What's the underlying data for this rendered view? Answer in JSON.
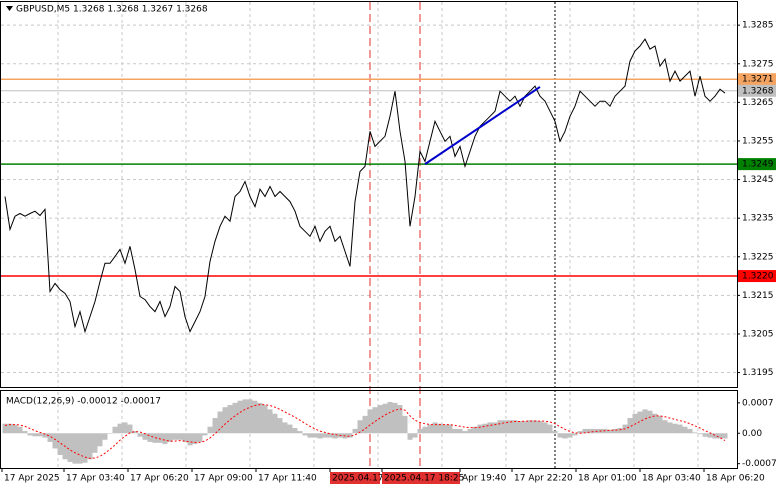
{
  "chart_data": {
    "type": "line",
    "title": "GBPUSD,M5  1.3268 1.3268 1.3267 1.3268",
    "color": "#000000",
    "values": [
      1.32406,
      1.32321,
      1.32355,
      1.32362,
      1.32355,
      1.32362,
      1.32368,
      1.32357,
      1.32373,
      1.3216,
      1.32181,
      1.32165,
      1.32155,
      1.32134,
      1.32069,
      1.32108,
      1.32056,
      1.32095,
      1.32134,
      1.32186,
      1.32233,
      1.32233,
      1.32251,
      1.32269,
      1.32233,
      1.32277,
      1.32217,
      1.32147,
      1.32139,
      1.32121,
      1.32108,
      1.32134,
      1.32095,
      1.32121,
      1.32173,
      1.3216,
      1.32095,
      1.32056,
      1.32082,
      1.32108,
      1.32147,
      1.32238,
      1.3229,
      1.32329,
      1.32355,
      1.32342,
      1.32406,
      1.32419,
      1.32445,
      1.32406,
      1.3238,
      1.32425,
      1.32406,
      1.32432,
      1.32406,
      1.32419,
      1.32406,
      1.32393,
      1.32368,
      1.32329,
      1.32316,
      1.32303,
      1.32329,
      1.3229,
      1.32316,
      1.32329,
      1.3229,
      1.32303,
      1.32264,
      1.32225,
      1.32393,
      1.32471,
      1.32484,
      1.32575,
      1.32536,
      1.32549,
      1.32562,
      1.32614,
      1.32679,
      1.32575,
      1.32497,
      1.32329,
      1.32406,
      1.32523,
      1.32497,
      1.32549,
      1.32601,
      1.32575,
      1.32549,
      1.32562,
      1.3251,
      1.32536,
      1.32484,
      1.32523,
      1.32562,
      1.32588,
      1.32601,
      1.32614,
      1.32627,
      1.32679,
      1.32666,
      1.32653,
      1.32666,
      1.3264,
      1.32666,
      1.32679,
      1.32692,
      1.32666,
      1.32653,
      1.32627,
      1.32601,
      1.32549,
      1.32575,
      1.32614,
      1.3264,
      1.32679,
      1.32666,
      1.32653,
      1.3264,
      1.32653,
      1.32653,
      1.3264,
      1.32666,
      1.32679,
      1.32692,
      1.32757,
      1.32783,
      1.32796,
      1.32814,
      1.32788,
      1.32796,
      1.32744,
      1.32762,
      1.32705,
      1.32731,
      1.32705,
      1.32718,
      1.32731,
      1.32666,
      1.32718,
      1.32666,
      1.32653,
      1.32666,
      1.32684,
      1.32674
    ],
    "ylim": [
      1.3191,
      1.3291
    ],
    "yticks": [
      1.3285,
      1.3275,
      1.3265,
      1.3255,
      1.3245,
      1.3235,
      1.3225,
      1.3215,
      1.3205,
      1.3195
    ],
    "grid": true,
    "levels": [
      {
        "value": 1.3271,
        "color": "#f4a460"
      },
      {
        "value": 1.3268,
        "color": "#c0c0c0"
      },
      {
        "value": 1.3249,
        "color": "#008000"
      },
      {
        "value": 1.322,
        "label": "1.3220",
        "color": "#ff0000"
      }
    ],
    "trendline": {
      "start": 1.3249,
      "end": 1.3269,
      "color": "#0000cc"
    },
    "xlabels": [
      "17 Apr 2025",
      "17 Apr 03:40",
      "17 Apr 06:20",
      "17 Apr 09:00",
      "17 Apr 11:40",
      "2025.04.17",
      "2025.04.17 18:25",
      "Apr 19:40",
      "17 Apr 22:20",
      "18 Apr 01:00",
      "18 Apr 03:40",
      "18 Apr 06:20"
    ],
    "macd": {
      "title": "MACD(12,26,9) -0.00012 -0.00017",
      "histogram_color": "#c0c0c0",
      "signal_color": "#ff0000",
      "histogram": [
        0.00022,
        0.00022,
        0.0002,
        0.00015,
        5e-05,
        -5e-05,
        -7e-05,
        -7e-05,
        -0.0001,
        -0.0002,
        -0.00035,
        -0.0005,
        -0.0006,
        -0.00066,
        -0.0007,
        -0.0007,
        -0.00068,
        -0.0006,
        -0.00045,
        -0.0003,
        -0.00015,
        0,
        0.00015,
        0.00022,
        0.00025,
        0.0002,
        5e-05,
        -8e-05,
        -0.00015,
        -0.0002,
        -0.00022,
        -0.00022,
        -0.00025,
        -0.0002,
        -0.00015,
        -0.00015,
        -0.0002,
        -0.00028,
        -0.00025,
        -0.0002,
        -5e-05,
        0.00015,
        0.00035,
        0.0005,
        0.0006,
        0.00065,
        0.0007,
        0.00075,
        0.00078,
        0.00078,
        0.00075,
        0.0007,
        0.00065,
        0.00055,
        0.00045,
        0.00035,
        0.00025,
        0.0002,
        0.00012,
        5e-05,
        -5e-05,
        -0.0001,
        -0.0001,
        -0.00012,
        -0.0001,
        -0.0001,
        -0.00012,
        -0.0001,
        -0.00012,
        -0.0001,
        0.0001,
        0.0003,
        0.0004,
        0.00055,
        0.0006,
        0.00065,
        0.00068,
        0.00072,
        0.0007,
        0.00065,
        0.0004,
        -0.00015,
        -0.0001,
        0.0001,
        0.00015,
        0.0002,
        0.00025,
        0.00022,
        0.0002,
        0.0002,
        0.0001,
        0.0001,
        5e-05,
        0.0001,
        0.00015,
        0.0002,
        0.00022,
        0.00025,
        0.00025,
        0.0003,
        0.0003,
        0.0003,
        0.0003,
        0.00028,
        0.00028,
        0.0003,
        0.0003,
        0.00028,
        0.00025,
        0.0002,
        5e-05,
        -0.0001,
        -0.00012,
        -0.0001,
        -5e-05,
        5e-05,
        0.0001,
        0.0001,
        0.0001,
        0.0001,
        0.0001,
        8e-05,
        0.0001,
        0.00012,
        0.0002,
        0.00035,
        0.00045,
        0.0005,
        0.00055,
        0.00052,
        0.00045,
        0.0004,
        0.0003,
        0.00025,
        0.00022,
        0.0002,
        0.00015,
        0.0001,
        2e-05,
        -2e-05,
        -8e-05,
        -0.0001,
        -0.00012,
        -0.00012,
        -0.00012
      ],
      "signal": [
        0.00018,
        0.0002,
        0.0002,
        0.00019,
        0.00016,
        0.00011,
        6e-05,
        2e-05,
        -2e-05,
        -7e-05,
        -0.00014,
        -0.00022,
        -0.0003,
        -0.00038,
        -0.00045,
        -0.0005,
        -0.00055,
        -0.00058,
        -0.00057,
        -0.00053,
        -0.00046,
        -0.00037,
        -0.00027,
        -0.00016,
        -7e-05,
        1e-05,
        4e-05,
        3e-05,
        -1e-05,
        -6e-05,
        -0.0001,
        -0.00013,
        -0.00016,
        -0.00018,
        -0.00018,
        -0.00017,
        -0.00018,
        -0.0002,
        -0.00021,
        -0.00021,
        -0.00018,
        -0.00011,
        -1e-05,
        0.0001,
        0.00021,
        0.00031,
        0.0004,
        0.00048,
        0.00055,
        0.0006,
        0.00064,
        0.00066,
        0.00066,
        0.00064,
        0.0006,
        0.00055,
        0.00049,
        0.00043,
        0.00037,
        0.0003,
        0.00023,
        0.00016,
        0.0001,
        5e-05,
        2e-05,
        -1e-05,
        -3e-05,
        -5e-05,
        -6e-05,
        -7e-05,
        -4e-05,
        3e-05,
        0.0001,
        0.00019,
        0.00027,
        0.00035,
        0.00042,
        0.00048,
        0.00053,
        0.00056,
        0.00053,
        0.0004,
        0.0003,
        0.00025,
        0.00022,
        0.0002,
        0.0002,
        0.0002,
        0.0002,
        0.0002,
        0.00018,
        0.00016,
        0.00014,
        0.00013,
        0.00013,
        0.00014,
        0.00016,
        0.00018,
        0.0002,
        0.00022,
        0.00024,
        0.00026,
        0.00027,
        0.00027,
        0.00028,
        0.00028,
        0.00028,
        0.00028,
        0.00028,
        0.00026,
        0.00022,
        0.00015,
        9e-05,
        4e-05,
        1e-05,
        0,
        1e-05,
        3e-05,
        4e-05,
        5e-05,
        6e-05,
        7e-05,
        7e-05,
        8e-05,
        0.0001,
        0.00015,
        0.00021,
        0.00027,
        0.00033,
        0.00037,
        0.0004,
        0.0004,
        0.00038,
        0.00035,
        0.00032,
        0.00029,
        0.00026,
        0.00022,
        0.00017,
        0.00012,
        6e-05,
        1e-05,
        -5e-05,
        -0.0001,
        -0.00017
      ],
      "ylim": [
        -0.0008,
        0.00095
      ],
      "yticks": [
        0.0007,
        {
          "value": 0,
          "label": "0.00"
        },
        -0.0007
      ]
    }
  }
}
